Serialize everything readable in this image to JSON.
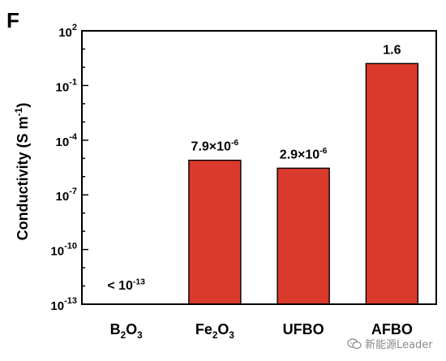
{
  "panel_label": "F",
  "watermark": {
    "text": "新能源Leader",
    "icon": "chat-bubbles-icon"
  },
  "colors": {
    "bar": "#d93a2b",
    "axis": "#000000"
  },
  "chart_data": {
    "type": "bar",
    "scale": "log",
    "ylim": [
      1e-13,
      100
    ],
    "yticks": [
      {
        "value": 1e-13,
        "base": "10",
        "exp": "-13"
      },
      {
        "value": 1e-10,
        "base": "10",
        "exp": "-10"
      },
      {
        "value": 1e-07,
        "base": "10",
        "exp": "-7"
      },
      {
        "value": 0.0001,
        "base": "10",
        "exp": "-4"
      },
      {
        "value": 0.1,
        "base": "10",
        "exp": "-1"
      },
      {
        "value": 100,
        "base": "10",
        "exp": "2"
      }
    ],
    "ylabel": {
      "text": "Conductivity (S m",
      "sup": "-1",
      "close": ")"
    },
    "categories": [
      {
        "parts": [
          [
            "B",
            ""
          ],
          [
            "2",
            "sub"
          ],
          [
            "O",
            ""
          ],
          [
            "3",
            "sub"
          ]
        ]
      },
      {
        "parts": [
          [
            "Fe",
            ""
          ],
          [
            "2",
            "sub"
          ],
          [
            "O",
            ""
          ],
          [
            "3",
            "sub"
          ]
        ]
      },
      {
        "parts": [
          [
            "UFBO",
            ""
          ]
        ]
      },
      {
        "parts": [
          [
            "AFBO",
            ""
          ]
        ]
      }
    ],
    "values": [
      null,
      7.9e-06,
      2.9e-06,
      1.6
    ],
    "data_labels": [
      {
        "parts": [
          [
            "< 10",
            ""
          ],
          [
            "-13",
            "sup"
          ]
        ]
      },
      {
        "parts": [
          [
            "7.9×10",
            ""
          ],
          [
            "-6",
            "sup"
          ]
        ]
      },
      {
        "parts": [
          [
            "2.9×10",
            ""
          ],
          [
            "-6",
            "sup"
          ]
        ]
      },
      {
        "parts": [
          [
            "1.6",
            ""
          ]
        ]
      }
    ]
  }
}
